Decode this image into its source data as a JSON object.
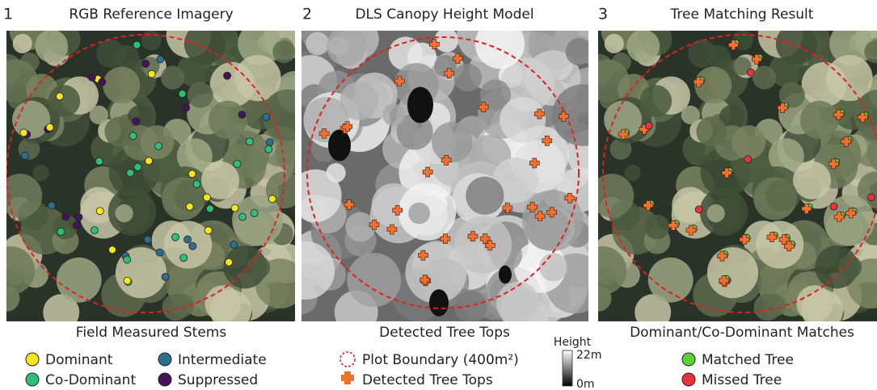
{
  "panels": [
    {
      "number": "1",
      "title": "RGB Reference Imagery",
      "caption": "Field Measured Stems",
      "legend": [
        "Dominant",
        "Intermediate",
        "Co-Dominant",
        "Suppressed"
      ]
    },
    {
      "number": "2",
      "title": "DLS Canopy Height Model",
      "caption": "Detected Tree Tops",
      "legend": [
        "Plot Boundary (400m²)",
        "Detected Tree Tops"
      ],
      "colorbar": {
        "title": "Height",
        "max": "22m",
        "min": "0m"
      }
    },
    {
      "number": "3",
      "title": "Tree Matching Result",
      "caption": "Dominant/Co-Dominant Matches",
      "legend": [
        "Matched Tree",
        "Missed Tree"
      ]
    }
  ]
}
